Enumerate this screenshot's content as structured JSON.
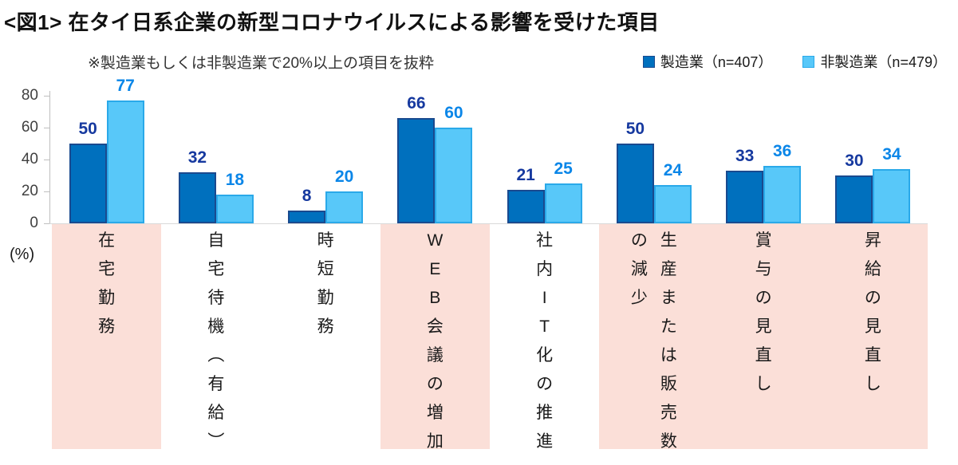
{
  "title": "<図1> 在タイ日系企業の新型コロナウイルスによる影響を受けた項目",
  "note": "※製造業もしくは非製造業で20%以上の項目を抜粋",
  "legend": [
    {
      "label": "製造業（n=407）",
      "color": "#0070be",
      "border": "#1a4a8f"
    },
    {
      "label": "非製造業（n=479）",
      "color": "#58c8f9",
      "border": "#2aa9e9"
    }
  ],
  "axis": {
    "unit_label": "(%)",
    "ticks": [
      80,
      60,
      40,
      20,
      0
    ]
  },
  "colors": {
    "manufacturing_fill": "#0070be",
    "manufacturing_border": "#1a4a8f",
    "manufacturing_label": "#16399f",
    "non_manufacturing_fill": "#58c8f9",
    "non_manufacturing_border": "#2aa9e9",
    "non_manufacturing_label": "#0a86e8",
    "highlight_band": "#fbdfd8"
  },
  "chart_data": {
    "type": "bar",
    "title": "<図1> 在タイ日系企業の新型コロナウイルスによる影響を受けた項目",
    "subtitle": "※製造業もしくは非製造業で20%以上の項目を抜粋",
    "ylabel": "(%)",
    "ylim": [
      0,
      80
    ],
    "grid": false,
    "legend_position": "top-right",
    "categories": [
      "在宅勤務",
      "自宅待機（有給）",
      "時短勤務",
      "WEB会議の増加",
      "社内IT化の推進",
      "生産または販売数の減少",
      "賞与の見直し",
      "昇給の見直し"
    ],
    "category_columns": [
      [
        "在宅勤務"
      ],
      [
        "自宅待機（有給）"
      ],
      [
        "時短勤務"
      ],
      [
        "WEB会議の増加"
      ],
      [
        "社内IT化の推進"
      ],
      [
        "生産または販売数",
        "の減少"
      ],
      [
        "賞与の見直し"
      ],
      [
        "昇給の見直し"
      ]
    ],
    "series": [
      {
        "name": "製造業（n=407）",
        "values": [
          50,
          32,
          8,
          66,
          21,
          50,
          33,
          30
        ]
      },
      {
        "name": "非製造業（n=479）",
        "values": [
          77,
          18,
          20,
          60,
          25,
          24,
          36,
          34
        ]
      }
    ],
    "highlight_ranges": [
      {
        "from": 0,
        "to": 0
      },
      {
        "from": 3,
        "to": 3
      },
      {
        "from": 5,
        "to": 7
      }
    ]
  }
}
